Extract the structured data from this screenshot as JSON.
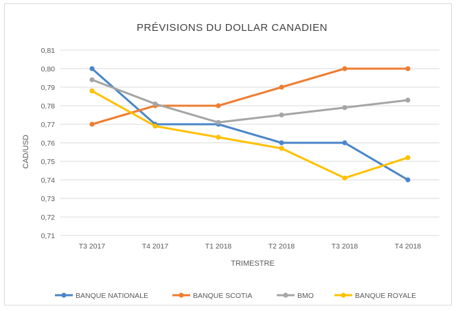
{
  "chart_data": {
    "type": "line",
    "title": "PRÉVISIONS  DU DOLLAR CANADIEN",
    "xlabel": "TRIMESTRE",
    "ylabel": "CAD/USD",
    "categories": [
      "T3 2017",
      "T4 2017",
      "T1 2018",
      "T2 2018",
      "T3 2018",
      "T4 2018"
    ],
    "ylim": [
      0.71,
      0.81
    ],
    "yticks": [
      "0,71",
      "0,72",
      "0,73",
      "0,74",
      "0,75",
      "0,76",
      "0,77",
      "0,78",
      "0,79",
      "0,80",
      "0,81"
    ],
    "grid": true,
    "legend_position": "bottom",
    "series": [
      {
        "name": "BANQUE NATIONALE",
        "color": "#4a86c8",
        "values": [
          0.8,
          0.77,
          0.77,
          0.76,
          0.76,
          0.74
        ]
      },
      {
        "name": "BANQUE SCOTIA",
        "color": "#ed7d31",
        "values": [
          0.77,
          0.78,
          0.78,
          0.79,
          0.8,
          0.8
        ]
      },
      {
        "name": "BMO",
        "color": "#a5a5a5",
        "values": [
          0.794,
          0.781,
          0.771,
          0.775,
          0.779,
          0.783
        ]
      },
      {
        "name": "BANQUE ROYALE",
        "color": "#ffc000",
        "values": [
          0.788,
          0.769,
          0.763,
          0.757,
          0.741,
          0.752
        ]
      }
    ]
  }
}
